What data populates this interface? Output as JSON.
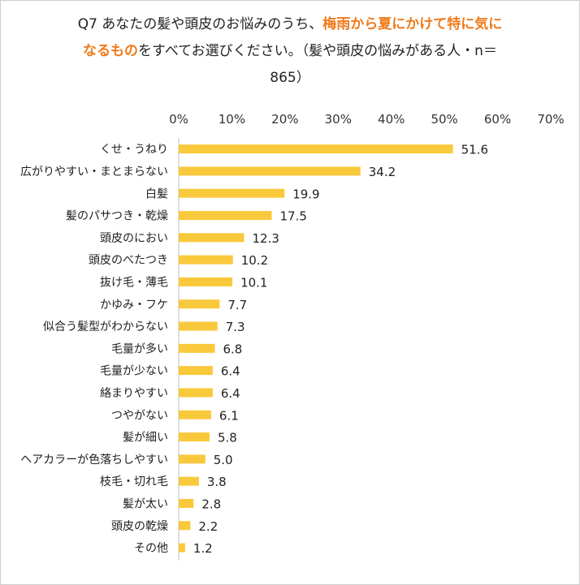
{
  "title": {
    "part1": "Q7 あなたの髪や頭皮のお悩みのうち、",
    "highlight1": "梅雨から夏にかけて特に気に",
    "highlight2": "なるもの",
    "part2": "をすべてお選びください。（髪や頭皮の悩みがある人・n＝",
    "part3": "865）"
  },
  "colors": {
    "bar": "#f9c93c",
    "highlight": "#f07a1a"
  },
  "chart_data": {
    "type": "bar",
    "orientation": "horizontal",
    "categories": [
      "くせ・うねり",
      "広がりやすい・まとまらない",
      "白髪",
      "髪のパサつき・乾燥",
      "頭皮のにおい",
      "頭皮のべたつき",
      "抜け毛・薄毛",
      "かゆみ・フケ",
      "似合う髪型がわからない",
      "毛量が多い",
      "毛量が少ない",
      "絡まりやすい",
      "つやがない",
      "髪が細い",
      "ヘアカラーが色落ちしやすい",
      "枝毛・切れ毛",
      "髪が太い",
      "頭皮の乾燥",
      "その他"
    ],
    "values": [
      51.6,
      34.2,
      19.9,
      17.5,
      12.3,
      10.2,
      10.1,
      7.7,
      7.3,
      6.8,
      6.4,
      6.4,
      6.1,
      5.8,
      5.0,
      3.8,
      2.8,
      2.2,
      1.2
    ],
    "value_labels": [
      "51.6",
      "34.2",
      "19.9",
      "17.5",
      "12.3",
      "10.2",
      "10.1",
      "7.7",
      "7.3",
      "6.8",
      "6.4",
      "6.4",
      "6.1",
      "5.8",
      "5.0",
      "3.8",
      "2.8",
      "2.2",
      "1.2"
    ],
    "xticks": [
      "0%",
      "10%",
      "20%",
      "30%",
      "40%",
      "50%",
      "60%",
      "70%"
    ],
    "xlim": [
      0,
      70
    ],
    "grid": false,
    "legend": "none"
  }
}
